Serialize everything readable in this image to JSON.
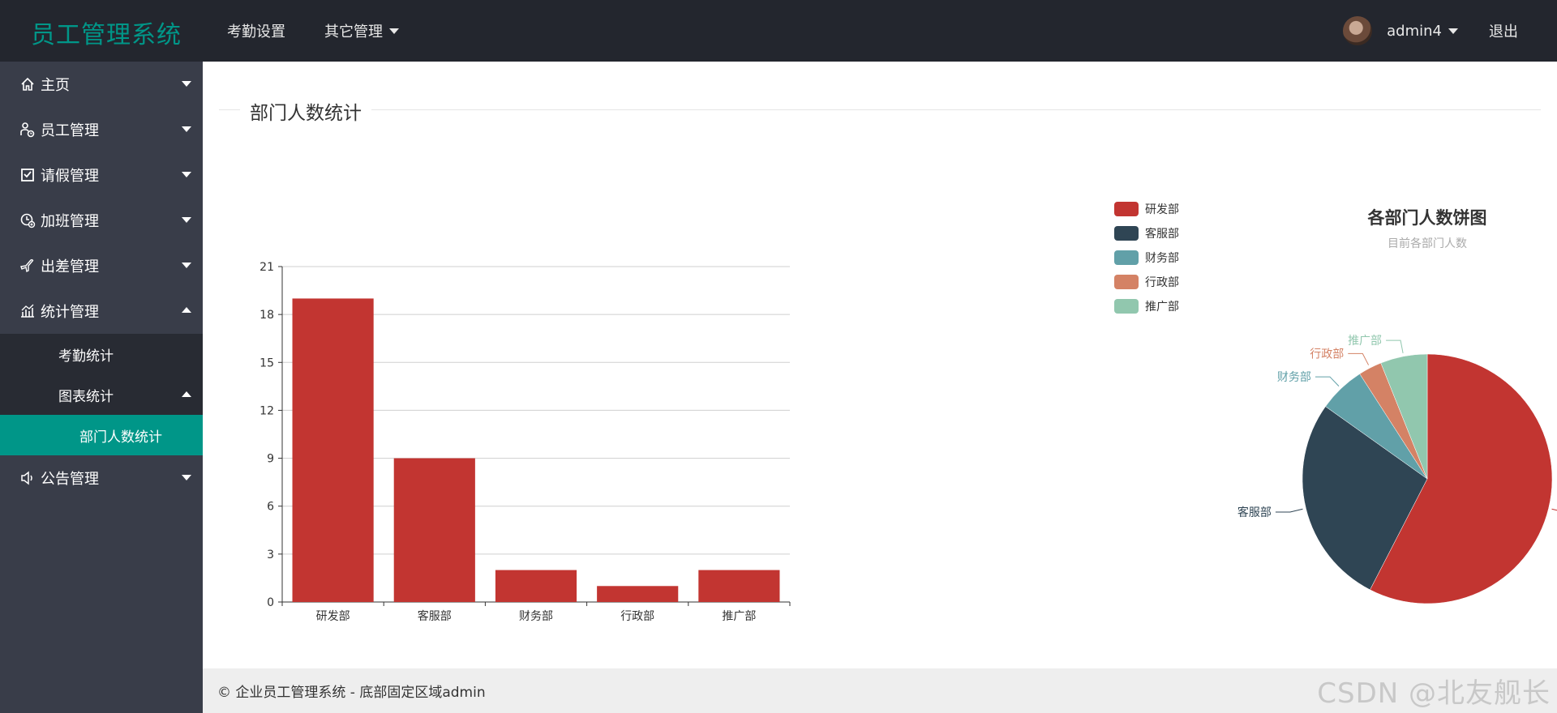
{
  "header": {
    "app_title": "员工管理系统",
    "nav": [
      {
        "label": "考勤设置",
        "has_dropdown": false
      },
      {
        "label": "其它管理",
        "has_dropdown": true
      }
    ],
    "username": "admin4",
    "logout_label": "退出"
  },
  "sidebar": {
    "items": [
      {
        "label": "主页",
        "icon": "home-icon",
        "expanded": false
      },
      {
        "label": "员工管理",
        "icon": "user-manage-icon",
        "expanded": false
      },
      {
        "label": "请假管理",
        "icon": "leave-icon",
        "expanded": false
      },
      {
        "label": "加班管理",
        "icon": "overtime-icon",
        "expanded": false
      },
      {
        "label": "出差管理",
        "icon": "plane-icon",
        "expanded": false
      },
      {
        "label": "统计管理",
        "icon": "chart-icon",
        "expanded": true
      },
      {
        "label": "公告管理",
        "icon": "speaker-icon",
        "expanded": false
      }
    ],
    "stats_submenu": [
      {
        "label": "考勤统计"
      },
      {
        "label": "图表统计",
        "expanded": true
      }
    ],
    "chart_submenu": [
      {
        "label": "部门人数统计",
        "active": true
      }
    ]
  },
  "main": {
    "section_title": "部门人数统计"
  },
  "footer": {
    "text": "© 企业员工管理系统 - 底部固定区域admin",
    "watermark": "CSDN @北友舰长"
  },
  "colors": {
    "accent": "#009688",
    "header_bg": "#23262e",
    "sidebar_bg": "#393d49",
    "bar": "#c23531"
  },
  "chart_data": [
    {
      "type": "bar",
      "categories": [
        "研发部",
        "客服部",
        "财务部",
        "行政部",
        "推广部"
      ],
      "values": [
        19,
        9,
        2,
        1,
        2
      ],
      "ylim": [
        0,
        21
      ],
      "yticks": [
        0,
        3,
        6,
        9,
        12,
        15,
        18,
        21
      ],
      "title": "",
      "xlabel": "",
      "ylabel": "",
      "grid": true,
      "color": "#c23531"
    },
    {
      "type": "pie",
      "title": "各部门人数饼图",
      "subtitle": "目前各部门人数",
      "labels": [
        "研发部",
        "客服部",
        "财务部",
        "行政部",
        "推广部"
      ],
      "values": [
        19,
        9,
        2,
        1,
        2
      ],
      "colors": [
        "#c23531",
        "#2f4554",
        "#61a0a8",
        "#d48265",
        "#91c7ae"
      ],
      "legend": "top-left"
    }
  ]
}
